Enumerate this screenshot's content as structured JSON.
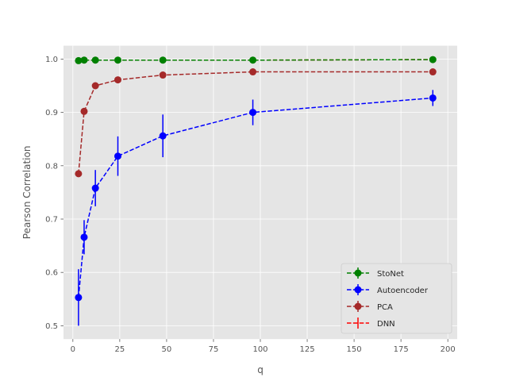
{
  "chart_data": {
    "type": "line",
    "xlabel": "q",
    "ylabel": "Pearson Correlation",
    "xlim": [
      -5,
      205
    ],
    "ylim": [
      0.475,
      1.025
    ],
    "xticks": [
      0,
      25,
      50,
      75,
      100,
      125,
      150,
      175,
      200
    ],
    "yticks": [
      0.5,
      0.6,
      0.7,
      0.8,
      0.9,
      1.0
    ],
    "xtick_labels": [
      "0",
      "25",
      "50",
      "75",
      "100",
      "125",
      "150",
      "175",
      "200"
    ],
    "ytick_labels": [
      "0.5",
      "0.6",
      "0.7",
      "0.8",
      "0.9",
      "1.0"
    ],
    "grid": true,
    "legend_position": "lower-right",
    "series": [
      {
        "name": "StoNet",
        "color": "#008000",
        "x": [
          3,
          6,
          12,
          24,
          48,
          96,
          192
        ],
        "y": [
          0.997,
          0.998,
          0.998,
          0.998,
          0.998,
          0.998,
          0.999
        ],
        "yerr": [
          0.001,
          0.001,
          0.001,
          0.001,
          0.001,
          0.001,
          0.001
        ]
      },
      {
        "name": "Autoencoder",
        "color": "#0000ff",
        "x": [
          3,
          6,
          12,
          24,
          48,
          96,
          192
        ],
        "y": [
          0.553,
          0.666,
          0.758,
          0.818,
          0.856,
          0.9,
          0.927
        ],
        "yerr": [
          0.053,
          0.032,
          0.034,
          0.037,
          0.04,
          0.024,
          0.015
        ]
      },
      {
        "name": "PCA",
        "color": "#a52a2a",
        "x": [
          3,
          6,
          12,
          24,
          48,
          96,
          192
        ],
        "y": [
          0.785,
          0.902,
          0.95,
          0.961,
          0.97,
          0.976,
          0.976
        ],
        "yerr": [
          0,
          0,
          0,
          0,
          0,
          0,
          0
        ]
      },
      {
        "name": "DNN",
        "color": "#ff0000",
        "x": [
          3,
          6,
          12,
          24,
          48,
          96,
          192
        ],
        "y": [
          0.997,
          0.998,
          0.998,
          0.998,
          0.998,
          0.998,
          0.999
        ],
        "yerr": [
          0.001,
          0.001,
          0.001,
          0.001,
          0.001,
          0.001,
          0.001
        ]
      }
    ],
    "draw_order": [
      3,
      1,
      2,
      0
    ]
  }
}
